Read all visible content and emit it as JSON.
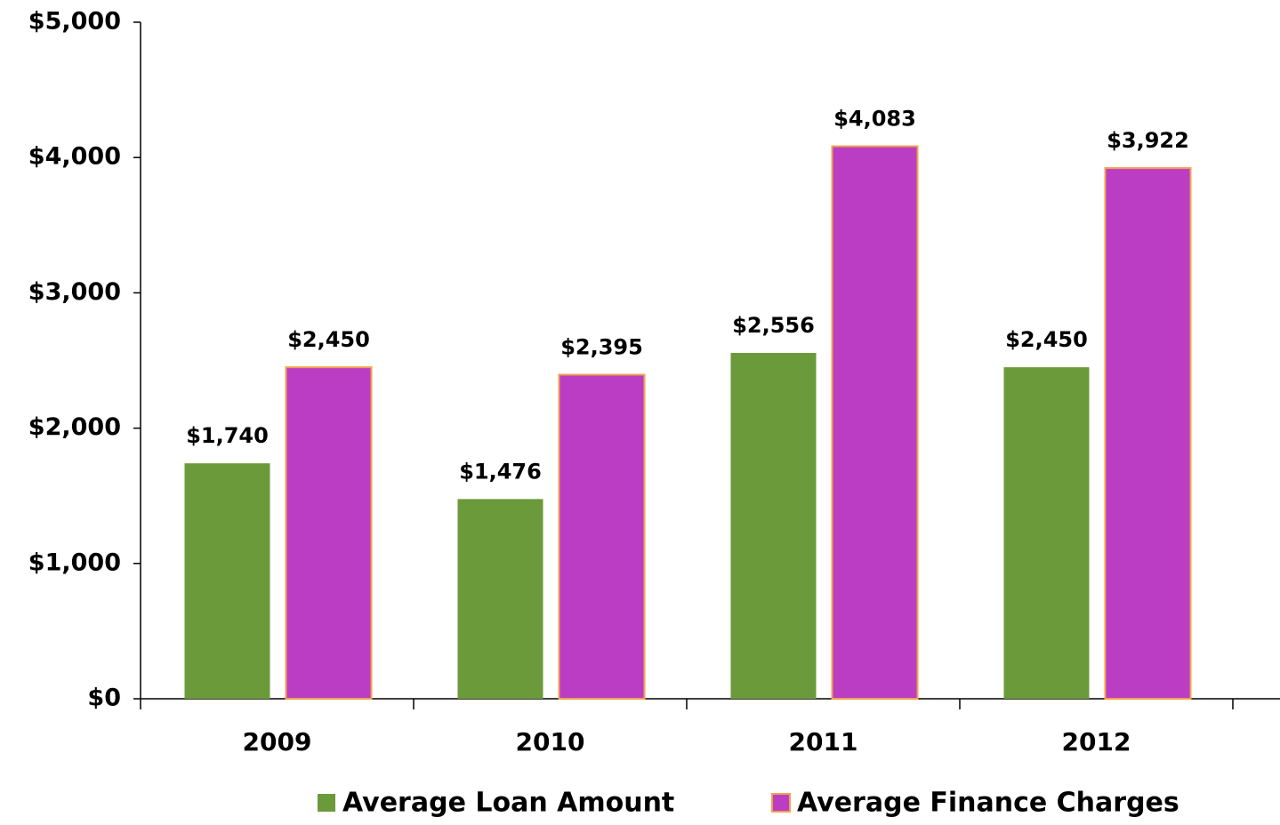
{
  "chart_data": {
    "type": "bar",
    "categories": [
      "2009",
      "2010",
      "2011",
      "2012"
    ],
    "series": [
      {
        "name": "Average Loan Amount",
        "color": "#6b9a3a",
        "values": [
          1740,
          1476,
          2556,
          2450
        ],
        "value_labels": [
          "$1,740",
          "$1,476",
          "$2,556",
          "$2,450"
        ]
      },
      {
        "name": "Average Finance Charges",
        "color": "#bb3dc4",
        "values": [
          2450,
          2395,
          4083,
          3922
        ],
        "value_labels": [
          "$2,450",
          "$2,395",
          "$4,083",
          "$3,922"
        ]
      }
    ],
    "ylim": [
      0,
      5000
    ],
    "yticks": [
      {
        "value": 0,
        "label": "$0"
      },
      {
        "value": 1000,
        "label": "$1,000"
      },
      {
        "value": 2000,
        "label": "$2,000"
      },
      {
        "value": 3000,
        "label": "$3,000"
      },
      {
        "value": 4000,
        "label": "$4,000"
      },
      {
        "value": 5000,
        "label": "$5,000"
      }
    ],
    "grid": false,
    "legend": "bottom"
  }
}
